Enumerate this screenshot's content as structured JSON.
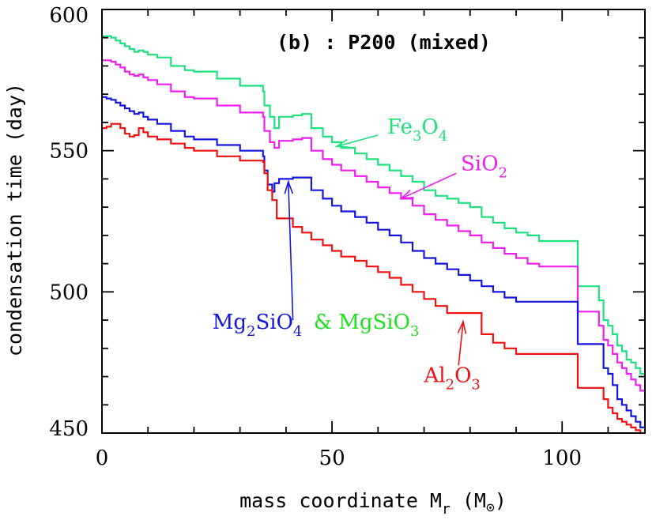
{
  "chart_data": {
    "type": "line",
    "title": "(b) : P200 (mixed)",
    "xlabel": "mass coordinate M",
    "xlabel_sub": "r",
    "xlabel_unit_open": " (M",
    "xlabel_unit_sub": "⊙",
    "xlabel_unit_close": ")",
    "ylabel": "condensation time (day)",
    "xlim": [
      0,
      118
    ],
    "ylim": [
      450,
      600
    ],
    "xticks": [
      "0",
      "50",
      "100"
    ],
    "yticks": [
      "450",
      "500",
      "550",
      "600"
    ],
    "grid": false,
    "legend": "inline annotations with arrows",
    "series": [
      {
        "key": "fe3o4",
        "color": "#1fe07f",
        "x": [
          0,
          1,
          2,
          3,
          4,
          5,
          6,
          7,
          8,
          9,
          10,
          12,
          15,
          18,
          20,
          25,
          30,
          35,
          35.3,
          36.5,
          37.5,
          38.5,
          39.5,
          41.5,
          43.5,
          45.5,
          48,
          50,
          52,
          55,
          57.5,
          60,
          62.5,
          65,
          67.5,
          70,
          72.5,
          75,
          77.5,
          80,
          82.5,
          85,
          87.5,
          90,
          92.5,
          95,
          100,
          103,
          103.4,
          108,
          109,
          110,
          111,
          112,
          113,
          114,
          115,
          116,
          117,
          118
        ],
        "y": [
          590.5,
          590.5,
          590,
          589,
          588,
          587,
          586,
          585,
          585.5,
          585,
          584,
          583,
          580,
          578.5,
          578,
          575.5,
          573,
          571,
          566,
          562,
          558,
          562,
          562,
          562.5,
          563,
          558,
          555,
          553,
          551,
          549,
          547,
          545,
          543,
          541,
          539,
          536,
          534,
          533,
          531.5,
          530,
          526.5,
          524.5,
          522.5,
          521,
          520,
          518,
          518,
          518,
          502,
          497,
          490,
          488,
          485,
          481,
          479,
          476,
          475,
          473,
          471,
          471
        ]
      },
      {
        "key": "sio2",
        "color": "#ee1fee",
        "x": [
          0,
          1,
          2,
          3,
          4,
          5,
          6,
          7,
          8,
          9,
          10,
          12,
          15,
          18,
          20,
          25,
          30,
          35,
          35.3,
          36.5,
          37.5,
          38.5,
          39.5,
          41.5,
          43.5,
          45.5,
          48,
          50,
          52,
          55,
          57.5,
          60,
          62.5,
          65,
          67.5,
          70,
          72.5,
          75,
          77.5,
          80,
          82.5,
          85,
          87.5,
          90,
          92.5,
          95,
          100,
          103,
          103.4,
          108,
          109,
          110,
          111,
          112,
          113,
          114,
          115,
          116,
          117,
          118
        ],
        "y": [
          582,
          582,
          581.5,
          580.5,
          579.5,
          578,
          577,
          576.5,
          577,
          576,
          575,
          573.5,
          571,
          569,
          568.5,
          566,
          563.5,
          562,
          557,
          553,
          551,
          553.5,
          553.5,
          554,
          554.5,
          550,
          547,
          545,
          543,
          541,
          539,
          537,
          535,
          533,
          530.5,
          527.5,
          525.5,
          523.5,
          521.5,
          520,
          517.5,
          515.5,
          513.5,
          512,
          510,
          509,
          509,
          509,
          493,
          488,
          483,
          481,
          478,
          475,
          473,
          471,
          469,
          467,
          465,
          465
        ]
      },
      {
        "key": "mg2sio4",
        "color": "#1515e0",
        "x": [
          0,
          1,
          2,
          3,
          4,
          5,
          6,
          7,
          8,
          9,
          10,
          12,
          15,
          18,
          20,
          25,
          30,
          35,
          35.3,
          36,
          37,
          37.5,
          38.5,
          39.5,
          41.5,
          43.5,
          45.5,
          48,
          50,
          52,
          55,
          57.5,
          60,
          62.5,
          65,
          67.5,
          70,
          72.5,
          75,
          77.5,
          80,
          82.5,
          85,
          87.5,
          90,
          92.5,
          95,
          100,
          103,
          103.4,
          108,
          109,
          110,
          111,
          112,
          113,
          114,
          115,
          116,
          117,
          118
        ],
        "y": [
          569,
          568.5,
          568,
          567,
          566,
          565,
          564,
          563,
          563.5,
          562,
          561,
          559.5,
          557,
          555,
          554,
          552,
          550,
          548,
          543,
          538,
          535.5,
          538.5,
          540,
          540,
          540.5,
          540.5,
          536,
          533,
          530.5,
          528.5,
          526.5,
          524.5,
          522,
          520,
          517.5,
          514.5,
          512,
          510,
          508,
          506,
          504,
          502,
          500,
          498,
          496.5,
          496.5,
          496.5,
          496.5,
          496.5,
          481.5,
          481.5,
          473,
          471,
          467,
          462,
          460,
          458,
          456,
          454,
          452,
          452
        ]
      },
      {
        "key": "al2o3",
        "color": "#ee1111",
        "x": [
          0,
          1,
          2,
          3,
          4,
          5,
          6,
          7,
          8,
          9,
          10,
          12,
          15,
          18,
          20,
          25,
          30,
          35,
          35.3,
          36,
          37,
          38,
          39.5,
          41.5,
          43.5,
          45.5,
          48,
          50,
          52,
          55,
          57.5,
          60,
          62.5,
          65,
          67.5,
          70,
          72.5,
          75,
          77.5,
          80,
          82.5,
          85,
          87.5,
          90,
          92.5,
          95,
          100,
          103,
          103.4,
          108,
          109,
          110,
          111,
          112,
          113,
          114,
          115,
          116,
          117,
          118
        ],
        "y": [
          558,
          558.5,
          559.5,
          559.5,
          558,
          556,
          555,
          555.5,
          558,
          556.5,
          555,
          554,
          552.5,
          551,
          550,
          548,
          546.5,
          546,
          542,
          536,
          532.5,
          526,
          526,
          523,
          521,
          518.5,
          516.5,
          514.5,
          512.5,
          511,
          509,
          507,
          505,
          502.5,
          500,
          497.5,
          495,
          492.5,
          492.5,
          492.5,
          485,
          482,
          480,
          478,
          478,
          478,
          478,
          478,
          466,
          466,
          462,
          459,
          457,
          455,
          454,
          453,
          452,
          451,
          450,
          450
        ]
      }
    ],
    "annotations": [
      {
        "key": "fe3o4",
        "color": "#1fe07f",
        "parts": [
          [
            "Fe",
            ""
          ],
          [
            "3",
            "sub"
          ],
          [
            "O",
            ""
          ],
          [
            "4",
            "sub"
          ]
        ],
        "text_x": 62,
        "text_y": 556,
        "arrow_from": [
          60,
          555.5
        ],
        "arrow_to": [
          51,
          551.5
        ]
      },
      {
        "key": "sio2",
        "color": "#ee1fee",
        "parts": [
          [
            "SiO",
            ""
          ],
          [
            "2",
            "sub"
          ]
        ],
        "text_x": 78,
        "text_y": 543,
        "arrow_from": [
          77,
          542
        ],
        "arrow_to": [
          65,
          533
        ]
      },
      {
        "key": "mg2sio4",
        "color": "#1515e0",
        "parts": [
          [
            "Mg",
            ""
          ],
          [
            "2",
            "sub"
          ],
          [
            "SiO",
            ""
          ],
          [
            "4",
            "sub"
          ]
        ],
        "text_x": 24,
        "text_y": 487,
        "arrow_from": [
          41.5,
          490
        ],
        "arrow_to": [
          40.5,
          539
        ]
      },
      {
        "key": "mgsio3",
        "color": "#1fe01f",
        "parts": [
          [
            "& MgSiO",
            ""
          ],
          [
            "3",
            "sub"
          ]
        ],
        "text_x": 46,
        "text_y": 487,
        "arrow_from": null,
        "arrow_to": null
      },
      {
        "key": "al2o3",
        "color": "#ee1111",
        "parts": [
          [
            "Al",
            ""
          ],
          [
            "2",
            "sub"
          ],
          [
            "O",
            ""
          ],
          [
            "3",
            "sub"
          ]
        ],
        "text_x": 70,
        "text_y": 468,
        "arrow_from": [
          77.5,
          474
        ],
        "arrow_to": [
          78.5,
          489.5
        ]
      }
    ]
  }
}
